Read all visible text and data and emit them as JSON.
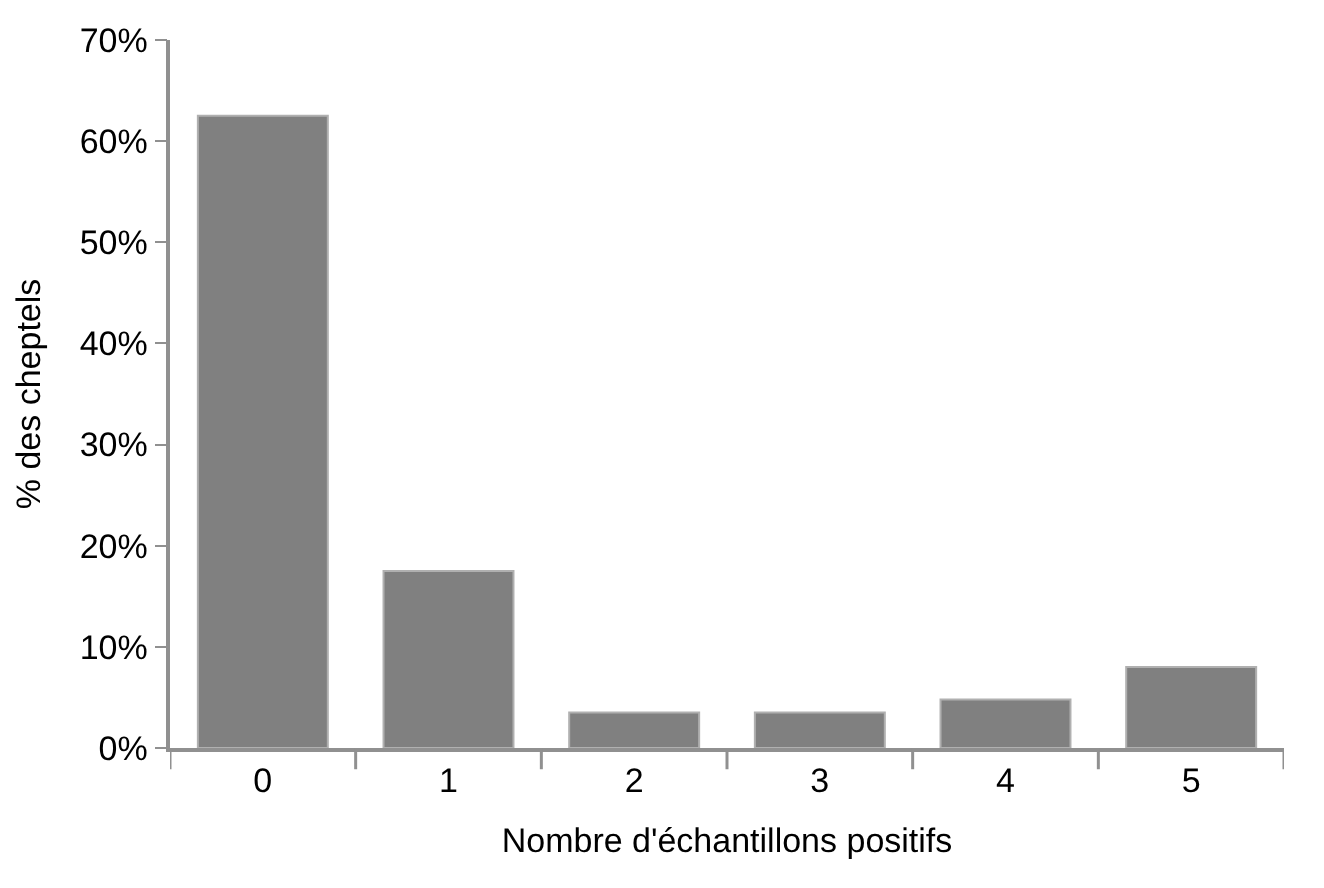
{
  "chart_data": {
    "type": "bar",
    "xlabel": "Nombre d'échantillons positifs",
    "ylabel": "% des cheptels",
    "categories": [
      "0",
      "1",
      "2",
      "3",
      "4",
      "5"
    ],
    "values": [
      62.5,
      17.5,
      3.5,
      3.5,
      4.8,
      8.0
    ],
    "color": "#808080",
    "ylim": [
      0,
      70
    ],
    "yticks": [
      {
        "value": 0,
        "label": "0%"
      },
      {
        "value": 10,
        "label": "10%"
      },
      {
        "value": 20,
        "label": "20%"
      },
      {
        "value": 30,
        "label": "30%"
      },
      {
        "value": 40,
        "label": "40%"
      },
      {
        "value": 50,
        "label": "50%"
      },
      {
        "value": 60,
        "label": "60%"
      },
      {
        "value": 70,
        "label": "70%"
      }
    ],
    "legend": false
  }
}
